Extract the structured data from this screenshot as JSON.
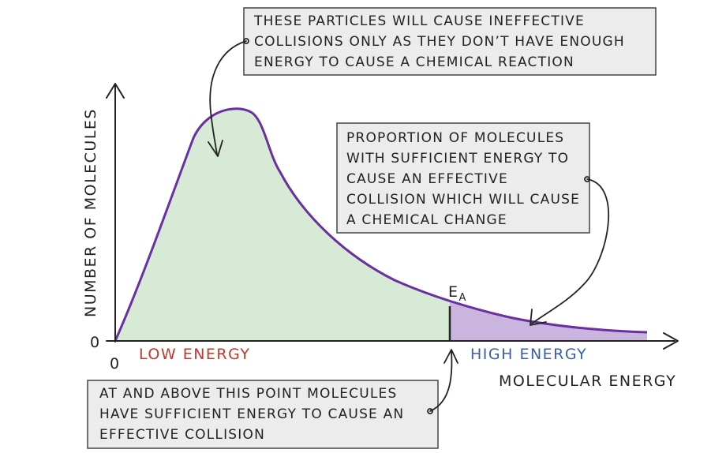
{
  "diagram": {
    "y_axis_label": "NUMBER OF MOLECULES",
    "x_axis_label": "MOLECULAR ENERGY",
    "origin_y_label": "0",
    "origin_x_label": "0",
    "threshold_label_main": "E",
    "threshold_label_sub": "A",
    "region_low_label": "LOW ENERGY",
    "region_high_label": "HIGH ENERGY",
    "notes": {
      "top": [
        "THESE PARTICLES WILL CAUSE INEFFECTIVE",
        "COLLISIONS ONLY AS THEY DON’T HAVE ENOUGH",
        "ENERGY TO CAUSE A CHEMICAL REACTION"
      ],
      "right": [
        "PROPORTION OF MOLECULES",
        "WITH SUFFICIENT ENERGY TO",
        "CAUSE AN EFFECTIVE",
        "COLLISION WHICH WILL CAUSE",
        "A CHEMICAL CHANGE"
      ],
      "bottom": [
        "AT AND ABOVE THIS POINT MOLECULES",
        "HAVE SUFFICIENT ENERGY TO CAUSE AN",
        "EFFECTIVE COLLISION"
      ]
    },
    "colors": {
      "curve": "#6a2fa0",
      "low_fill": "#d6ead6",
      "high_fill": "#c9b5dd",
      "low_label": "#c0392b",
      "high_label": "#3a5fb0",
      "note_box_fill": "#ececec",
      "note_box_stroke": "#444444",
      "axis": "#222222"
    }
  }
}
